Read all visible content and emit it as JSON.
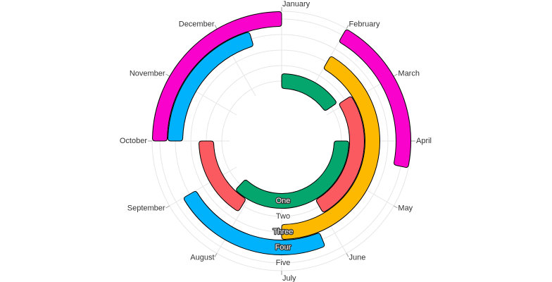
{
  "chart_data": {
    "type": "radial-range-bar",
    "angle_axis": {
      "categories": [
        "January",
        "February",
        "March",
        "April",
        "May",
        "June",
        "July",
        "August",
        "September",
        "October",
        "November",
        "December"
      ]
    },
    "radial_axis": {
      "categories": [
        "One",
        "Two",
        "Three",
        "Four",
        "Five"
      ]
    },
    "grid": true,
    "series": [
      {
        "category": "One",
        "color": "#05a66e",
        "ranges": [
          [
            0,
            1.85
          ],
          [
            3,
            7.45
          ]
        ]
      },
      {
        "category": "Two",
        "color": "#fc5a61",
        "ranges": [
          [
            1.9,
            5
          ],
          [
            7.05,
            9
          ]
        ]
      },
      {
        "category": "Three",
        "color": "#fdb900",
        "ranges": [
          [
            1,
            6
          ]
        ]
      },
      {
        "category": "Four",
        "color": "#00b1fb",
        "ranges": [
          [
            5.25,
            8
          ],
          [
            9,
            11.45
          ]
        ]
      },
      {
        "category": "Five",
        "color": "#f902cb",
        "ranges": [
          [
            1,
            3.4
          ],
          [
            9,
            12
          ]
        ]
      }
    ]
  }
}
